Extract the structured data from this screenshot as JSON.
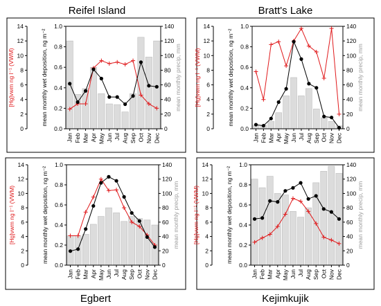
{
  "colors": {
    "precip_bar": "#dcdcdc",
    "precip_bar_stroke": "#bdbdbd",
    "hg_line": "#e0191b",
    "deposition_line": "#000000",
    "precip_label": "#9a9a9a"
  },
  "axis_labels": {
    "hg_label": "[Hg]vwm ng l⁻¹ (VWM)",
    "deposition_label": "mean monthly wet deposition, ng m⁻²",
    "precip_label": "mean monthly precip, mm"
  },
  "chart_data": [
    {
      "type": "bar+line",
      "title": "Reifel Island",
      "categories": [
        "Jan",
        "Feb",
        "Mar",
        "Apr",
        "May",
        "Jun",
        "Jul",
        "Aug",
        "Sep",
        "Oct",
        "Nov",
        "Dec"
      ],
      "hg_axis": {
        "ylim": [
          0,
          14
        ],
        "ticks": [
          0,
          2,
          4,
          6,
          8,
          10,
          12,
          14
        ]
      },
      "deposition_axis": {
        "ylim": [
          0,
          1.0
        ],
        "ticks": [
          0.0,
          0.2,
          0.4,
          0.6,
          0.8,
          1.0
        ]
      },
      "precip_axis": {
        "ylim": [
          0,
          140
        ],
        "ticks": [
          0,
          20,
          40,
          60,
          80,
          100,
          120,
          140
        ]
      },
      "precip_mm": [
        120,
        47,
        55,
        84,
        48,
        34,
        33,
        23,
        48,
        125,
        98,
        120
      ],
      "hg_ng_l": [
        2.7,
        3.4,
        3.4,
        8.3,
        9.3,
        8.9,
        9.1,
        8.8,
        9.3,
        4.6,
        3.4,
        2.8
      ],
      "deposition": [
        0.44,
        0.26,
        0.37,
        0.58,
        0.49,
        0.31,
        0.31,
        0.24,
        0.32,
        0.65,
        0.42,
        0.41
      ]
    },
    {
      "type": "bar+line",
      "title": "Bratt's Lake",
      "categories": [
        "Jan",
        "Feb",
        "Mar",
        "Apr",
        "May",
        "Jun",
        "Jul",
        "Aug",
        "Sep",
        "Oct",
        "Nov",
        "Dec"
      ],
      "hg_axis": {
        "ylim": [
          0,
          14
        ],
        "ticks": [
          0,
          2,
          4,
          6,
          8,
          10,
          12,
          14
        ]
      },
      "deposition_axis": {
        "ylim": [
          0,
          1.0
        ],
        "ticks": [
          0.0,
          0.2,
          0.4,
          0.6,
          0.8,
          1.0
        ]
      },
      "precip_axis": {
        "ylim": [
          0,
          140
        ],
        "ticks": [
          0,
          20,
          40,
          60,
          80,
          100,
          120,
          140
        ]
      },
      "precip_mm": [
        5,
        5,
        10,
        22,
        45,
        70,
        45,
        55,
        27,
        15,
        10,
        4
      ],
      "hg_ng_l": [
        7.8,
        4.0,
        11.5,
        11.9,
        8.6,
        12.0,
        13.7,
        11.3,
        10.5,
        6.9,
        13.7,
        2.0
      ],
      "deposition": [
        0.04,
        0.03,
        0.1,
        0.26,
        0.39,
        0.85,
        0.68,
        0.44,
        0.4,
        0.12,
        0.11,
        0.01
      ]
    },
    {
      "type": "bar+line",
      "title": "Egbert",
      "categories": [
        "Jan",
        "Feb",
        "Mar",
        "Apr",
        "May",
        "Jun",
        "Jul",
        "Aug",
        "Sep",
        "Oct",
        "Nov",
        "Dec"
      ],
      "hg_axis": {
        "ylim": [
          0,
          14
        ],
        "ticks": [
          0,
          2,
          4,
          6,
          8,
          10,
          12,
          14
        ]
      },
      "deposition_axis": {
        "ylim": [
          0,
          1.0
        ],
        "ticks": [
          0.0,
          0.2,
          0.4,
          0.6,
          0.8,
          1.0
        ]
      },
      "precip_axis": {
        "ylim": [
          0,
          140
        ],
        "ticks": [
          0,
          20,
          40,
          60,
          80,
          100,
          120,
          140
        ]
      },
      "precip_mm": [
        41,
        41,
        43,
        57,
        68,
        80,
        73,
        61,
        68,
        65,
        63,
        56
      ],
      "hg_ng_l": [
        4.1,
        4.1,
        7.4,
        9.5,
        12.0,
        10.4,
        10.5,
        8.0,
        6.0,
        5.4,
        4.2,
        2.8
      ],
      "deposition": [
        0.14,
        0.16,
        0.36,
        0.59,
        0.82,
        0.88,
        0.84,
        0.68,
        0.52,
        0.44,
        0.28,
        0.18
      ]
    },
    {
      "type": "bar+line",
      "title": "Kejimkujik",
      "categories": [
        "Jan",
        "Feb",
        "Mar",
        "Apr",
        "May",
        "Jun",
        "Jul",
        "Aug",
        "Sep",
        "Oct",
        "Nov",
        "Dec"
      ],
      "hg_axis": {
        "ylim": [
          0,
          14
        ],
        "ticks": [
          0,
          2,
          4,
          6,
          8,
          10,
          12,
          14
        ]
      },
      "deposition_axis": {
        "ylim": [
          0,
          1.0
        ],
        "ticks": [
          0.0,
          0.2,
          0.4,
          0.6,
          0.8,
          1.0
        ]
      },
      "precip_axis": {
        "ylim": [
          0,
          140
        ],
        "ticks": [
          0,
          20,
          40,
          60,
          80,
          100,
          120,
          140
        ]
      },
      "precip_mm": [
        120,
        108,
        124,
        100,
        98,
        75,
        67,
        80,
        115,
        131,
        138,
        128
      ],
      "hg_ng_l": [
        3.2,
        3.8,
        4.3,
        5.4,
        7.1,
        9.3,
        8.9,
        7.5,
        5.8,
        3.9,
        3.5,
        3.0
      ],
      "deposition": [
        0.46,
        0.47,
        0.64,
        0.63,
        0.74,
        0.77,
        0.82,
        0.66,
        0.69,
        0.56,
        0.53,
        0.46
      ]
    }
  ]
}
